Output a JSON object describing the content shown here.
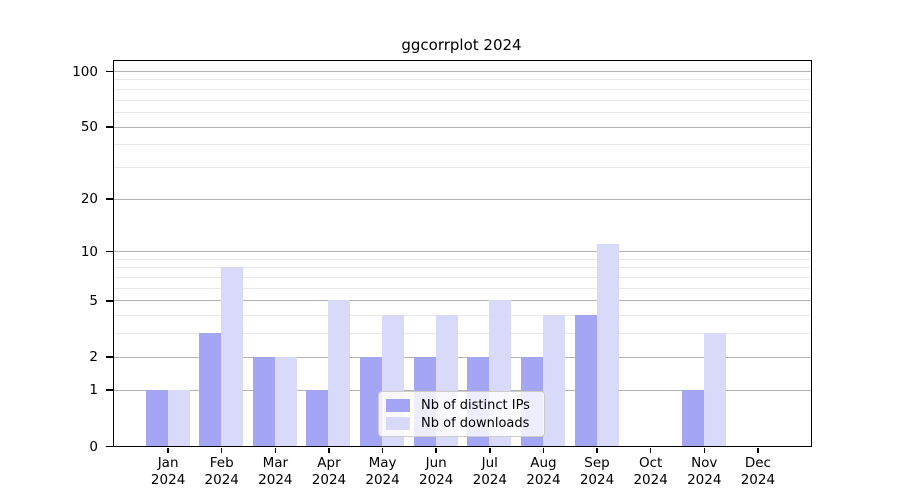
{
  "chart_data": {
    "type": "bar",
    "title": "ggcorrplot 2024",
    "categories": [
      "Jan",
      "Feb",
      "Mar",
      "Apr",
      "May",
      "Jun",
      "Jul",
      "Aug",
      "Sep",
      "Oct",
      "Nov",
      "Dec"
    ],
    "category_sublabel": "2024",
    "series": [
      {
        "name": "Nb of distinct IPs",
        "color": "#a5a5f6",
        "values": [
          1,
          3,
          2,
          1,
          2,
          2,
          2,
          2,
          4,
          0,
          1,
          0
        ]
      },
      {
        "name": "Nb of downloads",
        "color": "#d9d9fa",
        "values": [
          1,
          8,
          2,
          5,
          4,
          4,
          5,
          4,
          11,
          0,
          3,
          0
        ]
      }
    ],
    "yscale": "log1p",
    "ylim": [
      0,
      113
    ],
    "yticks_major": [
      0,
      1,
      2,
      5,
      10,
      20,
      50,
      100
    ],
    "yticks_minor": [
      3,
      4,
      6,
      7,
      8,
      9,
      30,
      40,
      60,
      70,
      80,
      90
    ],
    "grid": "horizontal",
    "legend_position": "inside-bottom-center",
    "colors": {
      "axis": "#000000",
      "major_grid": "#b3b3b3",
      "minor_grid": "#e9e9e9",
      "text": "#000000"
    }
  }
}
